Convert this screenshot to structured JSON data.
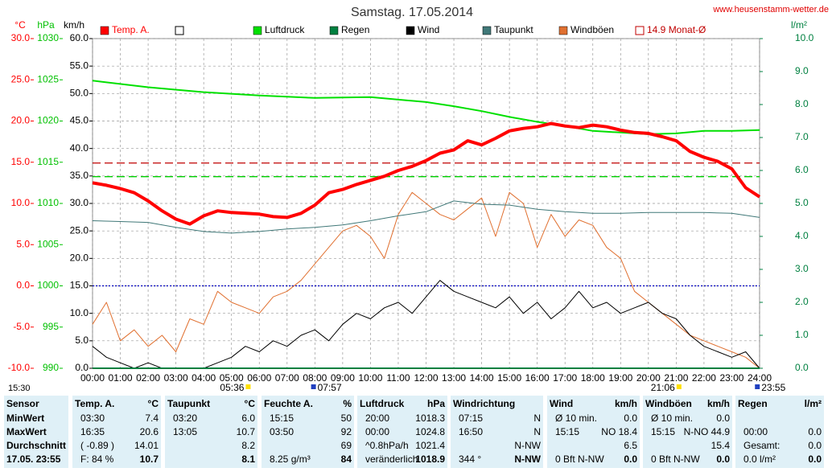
{
  "chart_data": {
    "type": "line",
    "title": "Samstag. 17.05.2014",
    "source": "www.heusenstamm-wetter.de",
    "update_time": "15:30",
    "xlim": [
      0,
      24
    ],
    "xticks": [
      {
        "value": 0,
        "label": "00:00"
      },
      {
        "value": 1,
        "label": "01:00"
      },
      {
        "value": 2,
        "label": "02:00"
      },
      {
        "value": 3,
        "label": "03:00"
      },
      {
        "value": 4,
        "label": "04:00"
      },
      {
        "value": 5,
        "label": "05:00"
      },
      {
        "value": 6,
        "label": "06:00"
      },
      {
        "value": 7,
        "label": "07:00"
      },
      {
        "value": 8,
        "label": "08:00"
      },
      {
        "value": 9,
        "label": "09:00"
      },
      {
        "value": 10,
        "label": "10:00"
      },
      {
        "value": 11,
        "label": "11:00"
      },
      {
        "value": 12,
        "label": "12:00"
      },
      {
        "value": 13,
        "label": "13:00"
      },
      {
        "value": 14,
        "label": "14:00"
      },
      {
        "value": 15,
        "label": "15:00"
      },
      {
        "value": 16,
        "label": "16:00"
      },
      {
        "value": 17,
        "label": "17:00"
      },
      {
        "value": 18,
        "label": "18:00"
      },
      {
        "value": 19,
        "label": "19:00"
      },
      {
        "value": 20,
        "label": "20:00"
      },
      {
        "value": 21,
        "label": "21:00"
      },
      {
        "value": 22,
        "label": "22:00"
      },
      {
        "value": 23,
        "label": "23:00"
      },
      {
        "value": 24,
        "label": "24:00"
      }
    ],
    "grid": true,
    "axes": {
      "temp": {
        "label": "°C",
        "color": "#ff0000",
        "lim": [
          -10,
          30
        ],
        "ticks": [
          {
            "value": 30,
            "label": "30.0"
          },
          {
            "value": 25,
            "label": "25.0"
          },
          {
            "value": 20,
            "label": "20.0"
          },
          {
            "value": 15,
            "label": "15.0"
          },
          {
            "value": 10,
            "label": "10.0"
          },
          {
            "value": 5,
            "label": "5.0"
          },
          {
            "value": 0,
            "label": "0.0"
          },
          {
            "value": -5,
            "label": "-5.0"
          },
          {
            "value": -10,
            "label": "-10.0"
          }
        ]
      },
      "press": {
        "label": "hPa",
        "color": "#00c000",
        "lim": [
          990,
          1030
        ],
        "ticks": [
          1030,
          1025,
          1020,
          1015,
          1010,
          1005,
          1000,
          995,
          990
        ]
      },
      "wind": {
        "label": "km/h",
        "color": "#000000",
        "lim": [
          0,
          60
        ],
        "ticks": [
          {
            "value": 60,
            "label": "60.0"
          },
          {
            "value": 55,
            "label": "55.0"
          },
          {
            "value": 50,
            "label": "50.0"
          },
          {
            "value": 45,
            "label": "45.0"
          },
          {
            "value": 40,
            "label": "40.0"
          },
          {
            "value": 35,
            "label": "35.0"
          },
          {
            "value": 30,
            "label": "30.0"
          },
          {
            "value": 25,
            "label": "25.0"
          },
          {
            "value": 20,
            "label": "20.0"
          },
          {
            "value": 15,
            "label": "15.0"
          },
          {
            "value": 10,
            "label": "10.0"
          },
          {
            "value": 5,
            "label": "5.0"
          },
          {
            "value": 0,
            "label": "0.0"
          }
        ]
      },
      "rain": {
        "label": "l/m²",
        "color": "#008040",
        "lim": [
          0,
          10
        ],
        "ticks": [
          {
            "value": 10,
            "label": "10.0"
          },
          {
            "value": 9,
            "label": "9.0"
          },
          {
            "value": 8,
            "label": "8.0"
          },
          {
            "value": 7,
            "label": "7.0"
          },
          {
            "value": 6,
            "label": "6.0"
          },
          {
            "value": 5,
            "label": "5.0"
          },
          {
            "value": 4,
            "label": "4.0"
          },
          {
            "value": 3,
            "label": "3.0"
          },
          {
            "value": 2,
            "label": "2.0"
          },
          {
            "value": 1,
            "label": "1.0"
          },
          {
            "value": 0,
            "label": "0.0"
          }
        ]
      }
    },
    "series": [
      {
        "name": "Temp. A.",
        "color": "#ff0000",
        "width": 4,
        "axis": "temp",
        "x": [
          0,
          0.5,
          1,
          1.5,
          2,
          2.5,
          3,
          3.5,
          4,
          4.5,
          5,
          5.5,
          6,
          6.5,
          7,
          7.5,
          8,
          8.5,
          9,
          9.5,
          10,
          10.5,
          11,
          11.5,
          12,
          12.5,
          13,
          13.5,
          14,
          14.5,
          15,
          15.5,
          16,
          16.5,
          17,
          17.5,
          18,
          18.5,
          19,
          19.5,
          20,
          20.5,
          21,
          21.5,
          22,
          22.5,
          23,
          23.5,
          24
        ],
        "values": [
          12.5,
          12.2,
          11.8,
          11.3,
          10.3,
          9.1,
          8.1,
          7.5,
          8.5,
          9.1,
          8.9,
          8.8,
          8.7,
          8.4,
          8.3,
          8.8,
          9.8,
          11.3,
          11.7,
          12.3,
          12.8,
          13.3,
          14.0,
          14.5,
          15.2,
          16.1,
          16.5,
          17.6,
          17.1,
          17.9,
          18.8,
          19.1,
          19.3,
          19.7,
          19.4,
          19.2,
          19.5,
          19.3,
          18.9,
          18.6,
          18.5,
          18.1,
          17.6,
          16.3,
          15.6,
          15.1,
          14.2,
          11.9,
          10.8
        ]
      },
      {
        "name": "Luftdruck",
        "color": "#00e000",
        "width": 2,
        "axis": "press",
        "x": [
          0,
          2,
          4,
          6,
          8,
          10,
          12,
          13,
          14,
          15,
          16,
          17,
          18,
          19,
          20,
          21,
          22,
          23,
          24
        ],
        "values": [
          1024.9,
          1024.1,
          1023.5,
          1023.1,
          1022.8,
          1022.9,
          1022.3,
          1021.8,
          1021.2,
          1020.5,
          1019.9,
          1019.4,
          1018.8,
          1018.6,
          1018.4,
          1018.5,
          1018.8,
          1018.8,
          1018.9
        ]
      },
      {
        "name": "Regen",
        "color": "#008040",
        "width": 2,
        "axis": "rain",
        "x": [
          0,
          24
        ],
        "values": [
          0,
          0
        ]
      },
      {
        "name": "Wind",
        "color": "#000000",
        "width": 1,
        "axis": "wind",
        "x": [
          0,
          0.5,
          1,
          1.5,
          2,
          2.5,
          3,
          3.5,
          4,
          4.5,
          5,
          5.5,
          6,
          6.5,
          7,
          7.5,
          8,
          8.5,
          9,
          9.5,
          10,
          10.5,
          11,
          11.5,
          12,
          12.5,
          13,
          13.5,
          14,
          14.5,
          15,
          15.5,
          16,
          16.5,
          17,
          17.5,
          18,
          18.5,
          19,
          19.5,
          20,
          20.5,
          21,
          21.5,
          22,
          22.5,
          23,
          23.5,
          24
        ],
        "values": [
          4,
          2,
          1,
          0,
          1,
          0,
          0,
          0,
          0,
          1,
          2,
          4,
          3,
          5,
          4,
          6,
          7,
          5,
          8,
          10,
          9,
          11,
          12,
          10,
          13,
          16,
          14,
          13,
          12,
          11,
          13,
          10,
          12,
          9,
          11,
          14,
          11,
          12,
          10,
          11,
          12,
          10,
          9,
          6,
          4,
          3,
          2,
          3,
          0
        ]
      },
      {
        "name": "Taupunkt",
        "color": "#407878",
        "width": 1,
        "axis": "temp",
        "x": [
          0,
          1,
          2,
          3,
          4,
          5,
          6,
          7,
          8,
          9,
          10,
          11,
          12,
          13,
          14,
          15,
          16,
          17,
          18,
          19,
          20,
          21,
          22,
          23,
          24
        ],
        "values": [
          7.9,
          7.8,
          7.7,
          7.1,
          6.6,
          6.4,
          6.6,
          6.9,
          7.1,
          7.4,
          7.9,
          8.5,
          9.0,
          10.3,
          9.9,
          9.8,
          9.3,
          9.0,
          8.8,
          8.8,
          8.9,
          8.9,
          8.9,
          8.8,
          8.3
        ]
      },
      {
        "name": "Windböen",
        "color": "#e07030",
        "width": 1,
        "axis": "wind",
        "x": [
          0,
          0.5,
          1,
          1.5,
          2,
          2.5,
          3,
          3.5,
          4,
          4.5,
          5,
          5.5,
          6,
          6.5,
          7,
          7.5,
          8,
          8.5,
          9,
          9.5,
          10,
          10.5,
          11,
          11.5,
          12,
          12.5,
          13,
          13.5,
          14,
          14.5,
          15,
          15.5,
          16,
          16.5,
          17,
          17.5,
          18,
          18.5,
          19,
          19.5,
          20,
          20.5,
          21,
          21.5,
          22,
          22.5,
          23,
          23.5,
          24
        ],
        "values": [
          8,
          12,
          5,
          7,
          4,
          6,
          3,
          9,
          8,
          14,
          12,
          11,
          10,
          13,
          14,
          16,
          19,
          22,
          25,
          26,
          24,
          20,
          28,
          32,
          30,
          28,
          27,
          29,
          31,
          24,
          32,
          30,
          22,
          28,
          24,
          27,
          26,
          22,
          20,
          14,
          12,
          10,
          8,
          6,
          5,
          4,
          3,
          2,
          0
        ]
      }
    ],
    "reference_lines": [
      {
        "name": "14.9 Monat-Ø",
        "value": 14.9,
        "axis": "temp",
        "color": "#c00000"
      },
      {
        "value": 1013.25,
        "axis": "press",
        "color": "#00d000"
      },
      {
        "value": 0,
        "axis": "temp",
        "color": "#0000c0"
      }
    ],
    "sun_markers": [
      {
        "x": 5.6,
        "label": "05:36"
      },
      {
        "x": 7.95,
        "label": "07:57"
      },
      {
        "x": 21.1,
        "label": "21:06"
      },
      {
        "x": 23.92,
        "label": "23:55"
      }
    ]
  },
  "table": {
    "columns": [
      {
        "title": "Sensor",
        "rows": [
          {
            "l": "MinWert"
          },
          {
            "l": "MaxWert"
          },
          {
            "l": "Durchschnitt"
          },
          {
            "l": "17.05. 23:55"
          }
        ]
      },
      {
        "title": "Temp. A.",
        "unit": "°C",
        "rows": [
          {
            "l": "03:30",
            "r": "7.4"
          },
          {
            "l": "16:35",
            "r": "20.6"
          },
          {
            "l": "( -0.89 )",
            "r": "14.01"
          },
          {
            "l": "F: 84 %",
            "r": "10.7"
          }
        ]
      },
      {
        "title": "Taupunkt",
        "unit": "°C",
        "rows": [
          {
            "l": "03:20",
            "r": "6.0"
          },
          {
            "l": "13:05",
            "r": "10.7"
          },
          {
            "r": "8.2"
          },
          {
            "r": "8.1"
          }
        ]
      },
      {
        "title": "Feuchte A.",
        "unit": "%",
        "rows": [
          {
            "l": "15:15",
            "r": "50"
          },
          {
            "l": "03:50",
            "r": "92"
          },
          {
            "r": "69"
          },
          {
            "l": "8.25 g/m³",
            "r": "84"
          }
        ]
      },
      {
        "title": "Luftdruck",
        "unit": "hPa",
        "rows": [
          {
            "l": "20:00",
            "r": "1018.3"
          },
          {
            "l": "00:00",
            "r": "1024.8"
          },
          {
            "l": "^0.8hPa/h",
            "r": "1021.4"
          },
          {
            "l": "veränderlich",
            "r": "1018.9"
          }
        ]
      },
      {
        "title": "Windrichtung",
        "rows": [
          {
            "l": "07:15",
            "r": "N"
          },
          {
            "l": "16:50",
            "r": "N"
          },
          {
            "r": "N-NW"
          },
          {
            "l": "344 °",
            "r": "N-NW"
          }
        ]
      },
      {
        "title": "Wind",
        "unit": "km/h",
        "rows": [
          {
            "l": "Ø 10 min.",
            "r": "0.0"
          },
          {
            "l": "15:15",
            "r": "NO 18.4"
          },
          {
            "r": "6.5"
          },
          {
            "l": "0 Bft N-NW",
            "r": "0.0"
          }
        ]
      },
      {
        "title": "Windböen",
        "unit": "km/h",
        "rows": [
          {
            "l": "Ø 10 min.",
            "r": "0.0"
          },
          {
            "l": "15:15",
            "r": "N-NO 44.9"
          },
          {
            "r": "15.4"
          },
          {
            "l": "0 Bft N-NW",
            "r": "0.0"
          }
        ]
      },
      {
        "title": "Regen",
        "unit": "l/m²",
        "rows": [
          {},
          {
            "l": "00:00",
            "r": "0.0"
          },
          {
            "l": "Gesamt:",
            "r": "0.0"
          },
          {
            "l": "0.0 l/m²",
            "r": "0.0"
          }
        ]
      }
    ]
  }
}
